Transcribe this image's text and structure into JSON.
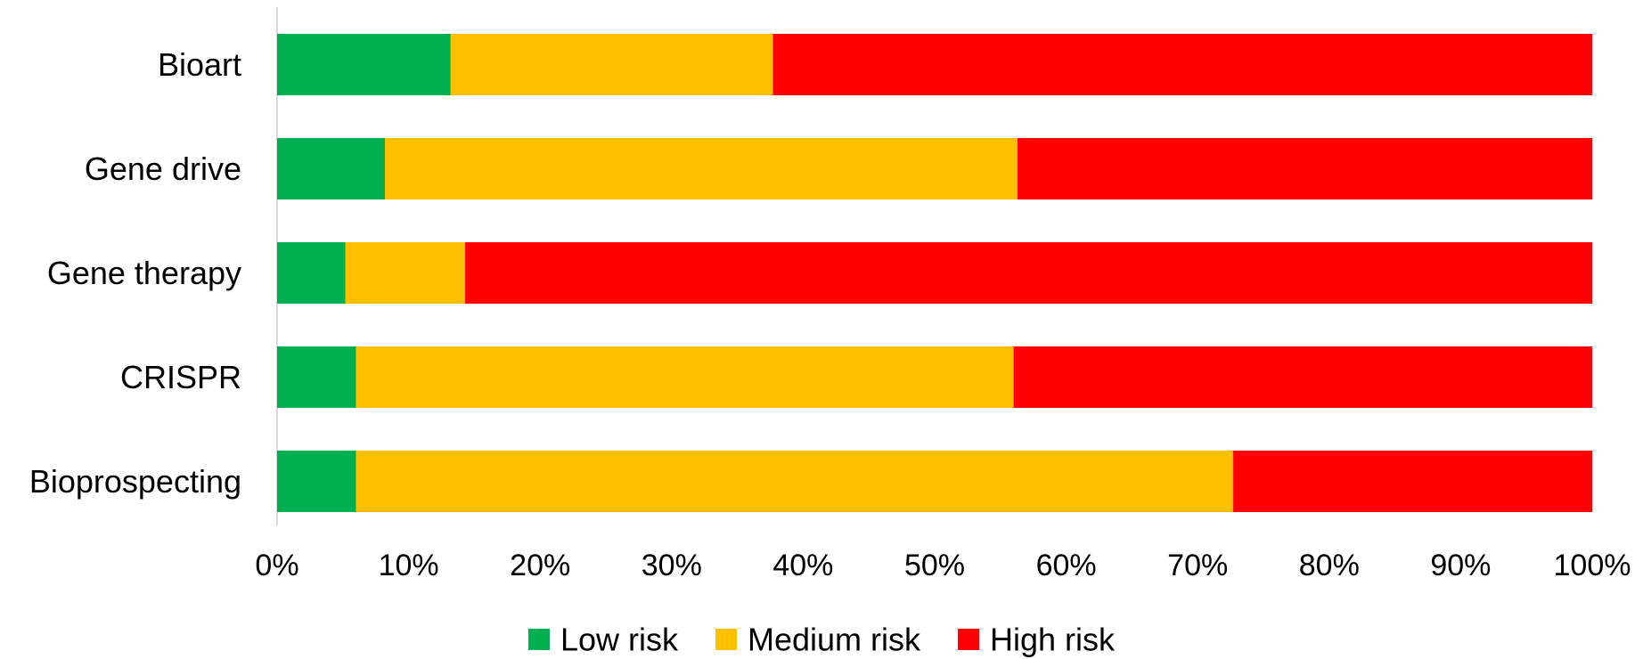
{
  "chart_data": {
    "type": "bar",
    "orientation": "horizontal",
    "stacked": "percent",
    "categories": [
      "Bioart",
      "Gene drive",
      "Gene therapy",
      "CRISPR",
      "Bioprospecting"
    ],
    "series": [
      {
        "name": "Low risk",
        "color": "#00B050",
        "values": [
          13.2,
          8.2,
          5.2,
          6.0,
          6.0
        ]
      },
      {
        "name": "Medium risk",
        "color": "#FFC000",
        "values": [
          24.5,
          48.1,
          9.1,
          50.0,
          66.7
        ]
      },
      {
        "name": "High risk",
        "color": "#FF0000",
        "values": [
          62.3,
          43.7,
          85.7,
          44.0,
          27.3
        ]
      }
    ],
    "xlim": [
      0,
      100
    ],
    "x_ticks": [
      "0%",
      "10%",
      "20%",
      "30%",
      "40%",
      "50%",
      "60%",
      "70%",
      "80%",
      "90%",
      "100%"
    ],
    "legend_position": "bottom",
    "grid": false
  }
}
